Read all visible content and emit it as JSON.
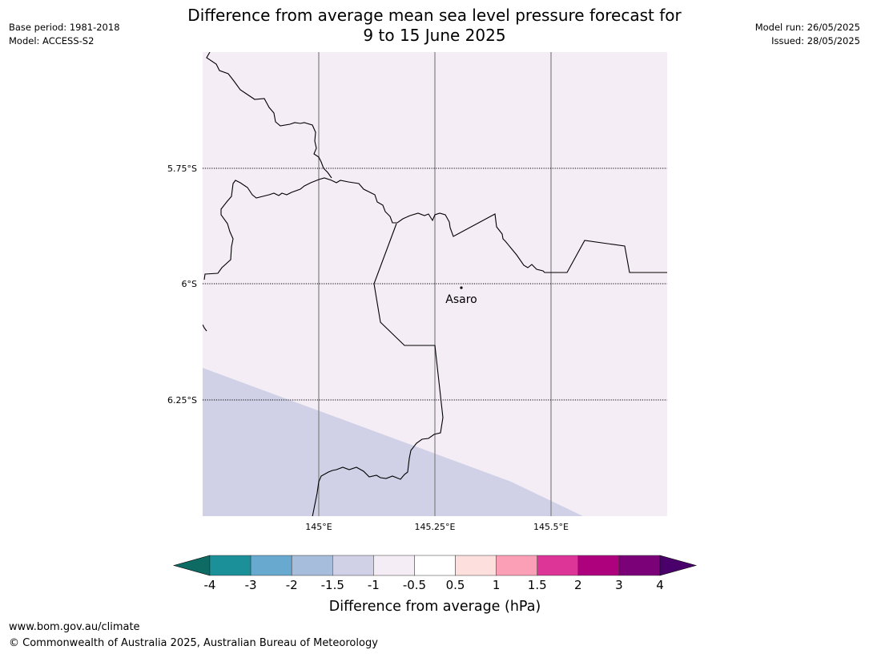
{
  "header": {
    "title_line1": "Difference from average mean sea level pressure forecast for",
    "title_line2": "9 to 15 June 2025",
    "base_period": "Base period: 1981-2018",
    "model": "Model: ACCESS-S2",
    "model_run": "Model run: 26/05/2025",
    "issued": "Issued: 28/05/2025"
  },
  "map": {
    "lat_ticks": [
      "5.75°S",
      "6°S",
      "6.25°S"
    ],
    "lon_ticks": [
      "145°E",
      "145.25°E",
      "145.5°E"
    ],
    "place": "Asaro",
    "colors": {
      "background_class": "#f4edf5",
      "lower_class": "#d0d1e6",
      "coast": "#000000",
      "gridline": "#808080"
    }
  },
  "colorbar": {
    "tick_labels": [
      "-4",
      "-3",
      "-2",
      "-1.5",
      "-1",
      "-0.5",
      "0.5",
      "1",
      "1.5",
      "2",
      "3",
      "4"
    ],
    "colors": [
      "#0e6b63",
      "#1c9099",
      "#67a9cf",
      "#a6bddb",
      "#d0d1e6",
      "#f4edf5",
      "#ffffff",
      "#fde0dd",
      "#fa9fb5",
      "#dd3497",
      "#ae017e",
      "#7a0177",
      "#49006a"
    ],
    "label": "Difference from average (hPa)"
  },
  "footer": {
    "url": "www.bom.gov.au/climate",
    "copyright": "© Commonwealth of Australia 2025, Australian Bureau of Meteorology"
  }
}
